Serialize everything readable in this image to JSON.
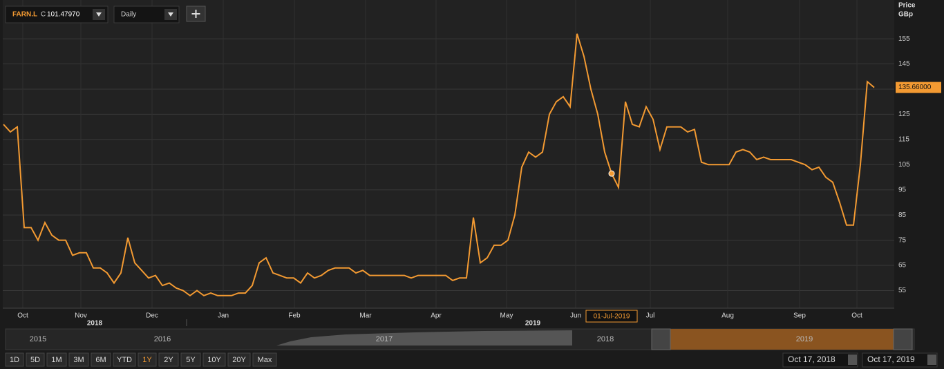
{
  "chart_data": {
    "type": "line",
    "ticker": "FARN.L",
    "close_prefix": "C",
    "close_label": "101.47970",
    "interval": "Daily",
    "y_axis_title": "Price",
    "y_axis_unit": "GBp",
    "color": "#f39a32",
    "values": [
      121,
      118,
      120,
      80,
      80,
      75,
      82,
      77,
      75,
      75,
      69,
      70,
      70,
      64,
      64,
      62,
      58,
      62,
      76,
      66,
      63,
      60,
      61,
      57,
      58,
      56,
      55,
      53,
      55,
      53,
      54,
      53,
      53,
      53,
      54,
      54,
      57,
      66,
      68,
      62,
      61,
      60,
      60,
      58,
      62,
      60,
      61,
      63,
      64,
      64,
      64,
      62,
      63,
      61,
      61,
      61,
      61,
      61,
      61,
      60,
      61,
      61,
      61,
      61,
      61,
      59,
      60,
      60,
      84,
      66,
      68,
      73,
      73,
      75,
      85,
      104,
      110,
      108,
      110,
      125,
      130,
      132,
      128,
      157,
      148,
      135,
      125,
      110,
      101.4797,
      96,
      130,
      121,
      120,
      128,
      123,
      111,
      120,
      120,
      120,
      118,
      119,
      106,
      105,
      105,
      105,
      105,
      110,
      111,
      110,
      107,
      108,
      107,
      107,
      107,
      107,
      106,
      105,
      103,
      104,
      100,
      98,
      90,
      81,
      81,
      105,
      138,
      135.66
    ],
    "xlim": [
      0,
      126
    ],
    "xticks": [
      {
        "value": 2.8,
        "label": "Oct"
      },
      {
        "value": 11.2,
        "label": "Nov"
      },
      {
        "value": 21.5,
        "label": "Dec"
      },
      {
        "value": 31.8,
        "label": "Jan"
      },
      {
        "value": 42.1,
        "label": "Feb"
      },
      {
        "value": 52.4,
        "label": "Mar"
      },
      {
        "value": 62.6,
        "label": "Apr"
      },
      {
        "value": 72.8,
        "label": "May"
      },
      {
        "value": 82.8,
        "label": "Jun"
      },
      {
        "value": 93.6,
        "label": "Jul"
      },
      {
        "value": 104.8,
        "label": "Aug"
      },
      {
        "value": 115.2,
        "label": "Sep"
      },
      {
        "value": 123.5,
        "label": "Oct"
      }
    ],
    "year_labels": [
      {
        "value": 13.2,
        "label": "2018"
      },
      {
        "value": 76.6,
        "label": "2019"
      }
    ],
    "ylim": [
      48,
      170.4
    ],
    "yticks": [
      55,
      65,
      75,
      85,
      95,
      105,
      115,
      125,
      135,
      145,
      155
    ],
    "grid": true,
    "crosshair": {
      "x_label": "01-Jul-2019",
      "value": 101.4797
    },
    "last_price": {
      "value": 135.66,
      "label": "135.66000"
    },
    "navigator_years": [
      "2015",
      "2016",
      "2017",
      "2018",
      "2019"
    ],
    "range_buttons": [
      "1D",
      "5D",
      "1M",
      "3M",
      "6M",
      "YTD",
      "1Y",
      "2Y",
      "5Y",
      "10Y",
      "20Y",
      "Max"
    ],
    "active_range": "1Y",
    "date_from": "Oct 17, 2018",
    "date_to": "Oct 17, 2019"
  }
}
